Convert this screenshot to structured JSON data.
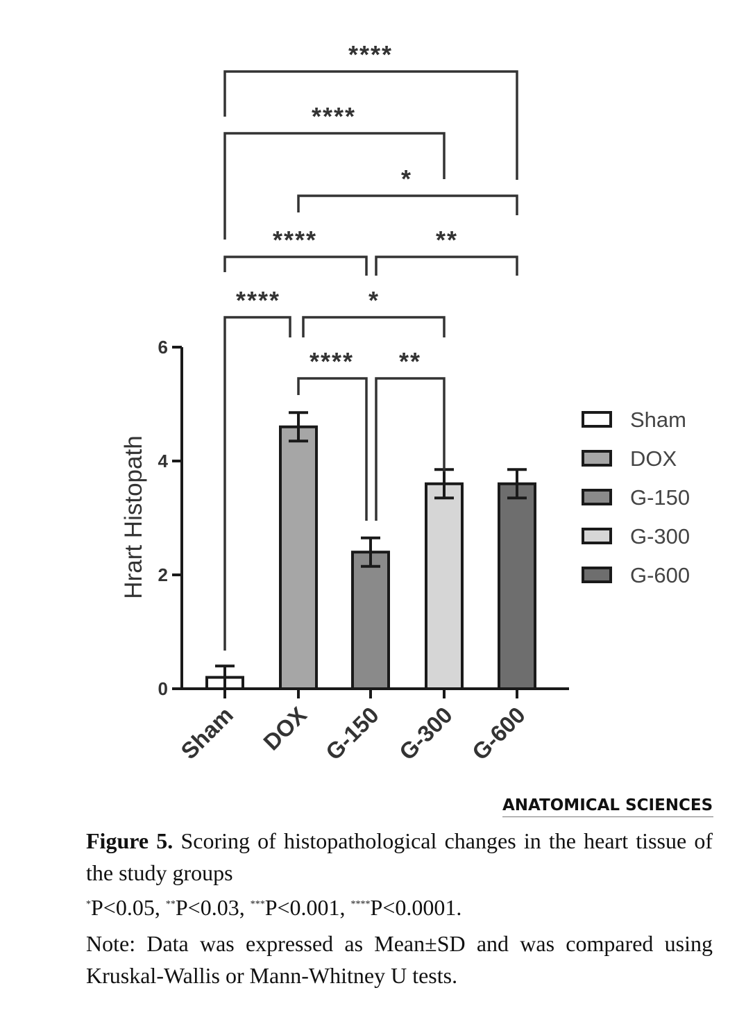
{
  "chart_data": {
    "type": "bar",
    "categories": [
      "Sham",
      "DOX",
      "G-150",
      "G-300",
      "G-600"
    ],
    "values": [
      0.2,
      4.6,
      2.4,
      3.6,
      3.6
    ],
    "errors": [
      0.2,
      0.25,
      0.25,
      0.25,
      0.25
    ],
    "ylabel": "Hrart Histopath",
    "xlabel": "",
    "ylim": [
      0,
      6
    ],
    "yticks": [
      0,
      2,
      4,
      6
    ],
    "legend": [
      "Sham",
      "DOX",
      "G-150",
      "G-300",
      "G-600"
    ],
    "legend_position": "right",
    "bar_colors": [
      "#ffffff",
      "#a6a6a6",
      "#8a8a8a",
      "#d6d6d6",
      "#6e6e6e"
    ],
    "significance": [
      {
        "from": "DOX",
        "to": "G-150",
        "label": "****"
      },
      {
        "from": "G-150",
        "to": "G-300",
        "label": "**"
      },
      {
        "from": "Sham",
        "to": "DOX",
        "label": "****"
      },
      {
        "from": "DOX",
        "to": "G-300",
        "label": "*"
      },
      {
        "from": "Sham",
        "to": "G-150",
        "label": "****"
      },
      {
        "from": "G-150",
        "to": "G-600",
        "label": "**"
      },
      {
        "from": "DOX",
        "to": "G-600",
        "label": "*"
      },
      {
        "from": "Sham",
        "to": "G-300",
        "label": "****"
      },
      {
        "from": "Sham",
        "to": "G-600",
        "label": "****"
      }
    ]
  },
  "brand": "ANATOMICAL SCIENCES",
  "caption": {
    "figure_label": "Figure 5.",
    "title": "Scoring of histopathological changes in the heart tissue of the study groups",
    "pvalues": [
      {
        "stars": "*",
        "text": "P<0.05,"
      },
      {
        "stars": "**",
        "text": "P<0.03,"
      },
      {
        "stars": "***",
        "text": "P<0.001,"
      },
      {
        "stars": "****",
        "text": "P<0.0001."
      }
    ],
    "note": "Note: Data was expressed as Mean±SD and was compared using Kruskal-Wallis or Mann-Whitney U tests."
  }
}
